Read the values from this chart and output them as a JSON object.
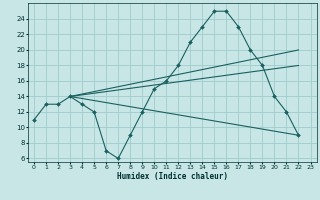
{
  "xlabel": "Humidex (Indice chaleur)",
  "background_color": "#c8e6e6",
  "grid_color": "#a0cccc",
  "line_color": "#1a6060",
  "xlim": [
    -0.5,
    23.5
  ],
  "ylim": [
    5.5,
    26
  ],
  "xticks": [
    0,
    1,
    2,
    3,
    4,
    5,
    6,
    7,
    8,
    9,
    10,
    11,
    12,
    13,
    14,
    15,
    16,
    17,
    18,
    19,
    20,
    21,
    22,
    23
  ],
  "yticks": [
    6,
    8,
    10,
    12,
    14,
    16,
    18,
    20,
    22,
    24
  ],
  "curve1_x": [
    0,
    1,
    2,
    3,
    4,
    5,
    6,
    7,
    8,
    9,
    10,
    11,
    12,
    13,
    14,
    15,
    16,
    17,
    18,
    19,
    20,
    21,
    22
  ],
  "curve1_y": [
    11,
    13,
    13,
    14,
    13,
    12,
    7,
    6,
    9,
    12,
    15,
    16,
    18,
    21,
    23,
    25,
    25,
    23,
    20,
    18,
    14,
    12,
    9
  ],
  "line1_x": [
    3,
    22
  ],
  "line1_y": [
    14,
    18
  ],
  "line2_x": [
    3,
    22
  ],
  "line2_y": [
    14,
    20
  ],
  "line3_x": [
    3,
    22
  ],
  "line3_y": [
    14,
    9
  ]
}
